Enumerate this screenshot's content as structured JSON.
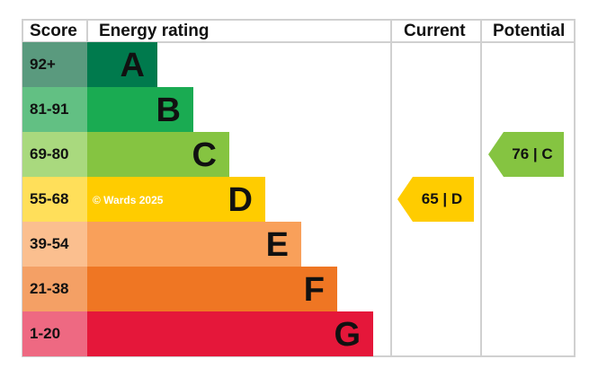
{
  "chart_data": {
    "type": "table",
    "headers": {
      "score": "Score",
      "rating": "Energy rating",
      "current": "Current",
      "potential": "Potential"
    },
    "bands": [
      {
        "letter": "A",
        "range": "92+",
        "color": "#007a4d",
        "score_color": "#5a9a7e"
      },
      {
        "letter": "B",
        "range": "81-91",
        "color": "#1aab52",
        "score_color": "#62c083"
      },
      {
        "letter": "C",
        "range": "69-80",
        "color": "#85c441",
        "score_color": "#a9d97e"
      },
      {
        "letter": "D",
        "range": "55-68",
        "color": "#ffcc00",
        "score_color": "#ffdf5a"
      },
      {
        "letter": "E",
        "range": "39-54",
        "color": "#f9a05a",
        "score_color": "#fbbf8f"
      },
      {
        "letter": "F",
        "range": "21-38",
        "color": "#ef7623",
        "score_color": "#f4a065"
      },
      {
        "letter": "G",
        "range": "1-20",
        "color": "#e5173a",
        "score_color": "#ee6982"
      }
    ],
    "current": {
      "score": 65,
      "band": "D",
      "label": "65 | D",
      "color": "#ffcc00"
    },
    "potential": {
      "score": 76,
      "band": "C",
      "label": "76 | C",
      "color": "#85c441"
    },
    "watermark": "© Wards 2025"
  }
}
